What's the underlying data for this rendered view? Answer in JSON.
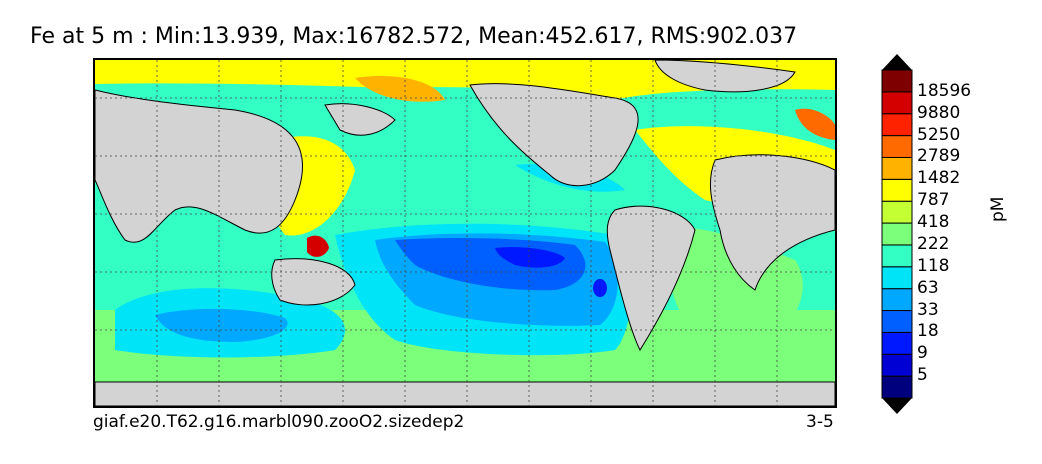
{
  "title": "Fe at 5 m : Min:13.939, Max:16782.572, Mean:452.617, RMS:902.037",
  "footer_left": "giaf.e20.T62.g16.marbl090.zooO2.sizedep2",
  "footer_right": "3-5",
  "units": "pM",
  "colorbar": {
    "levels": [
      "5",
      "9",
      "18",
      "33",
      "63",
      "118",
      "222",
      "418",
      "787",
      "1482",
      "2789",
      "5250",
      "9880",
      "18596"
    ],
    "colors": [
      "#00007f",
      "#0000d4",
      "#0018ff",
      "#0060ff",
      "#00a8ff",
      "#00e4f8",
      "#33ffc4",
      "#7cff7a",
      "#c4ff33",
      "#ffff00",
      "#ffb200",
      "#ff6a00",
      "#ff2200",
      "#d40000",
      "#7f0000"
    ],
    "extend": "both"
  },
  "map": {
    "land_color": "#d3d3d3",
    "grid": true
  }
}
